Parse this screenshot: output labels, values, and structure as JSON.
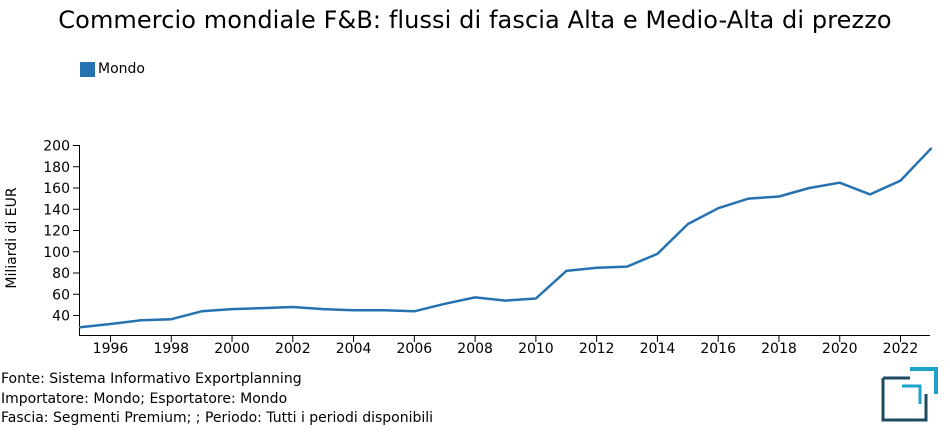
{
  "title": "Commercio mondiale F&B: flussi di fascia Alta e Medio-Alta di prezzo",
  "legend": {
    "label": "Mondo",
    "color": "#2672b0"
  },
  "chart_data": {
    "type": "line",
    "title": "Commercio mondiale F&B: flussi di fascia Alta e Medio-Alta di prezzo",
    "xlabel": "",
    "ylabel": "Miliardi di EUR",
    "xlim": [
      1995,
      2023
    ],
    "ylim": [
      27,
      205
    ],
    "x_ticks": [
      "1996",
      "1998",
      "2000",
      "2002",
      "2004",
      "2006",
      "2008",
      "2010",
      "2012",
      "2014",
      "2016",
      "2018",
      "2020",
      "2022"
    ],
    "y_ticks": [
      "40",
      "60",
      "80",
      "100",
      "120",
      "140",
      "160",
      "180",
      "200"
    ],
    "grid": false,
    "legend_position": "top-left",
    "series": [
      {
        "name": "Mondo",
        "color": "#2672b0",
        "x": [
          1995,
          1996,
          1997,
          1998,
          1999,
          2000,
          2001,
          2002,
          2003,
          2004,
          2005,
          2006,
          2007,
          2008,
          2009,
          2010,
          2011,
          2012,
          2013,
          2014,
          2015,
          2016,
          2017,
          2018,
          2019,
          2020,
          2021,
          2022,
          2023
        ],
        "values": [
          29,
          32,
          35.5,
          36.5,
          44,
          46,
          47,
          48,
          46,
          45,
          45,
          44,
          51,
          57,
          54,
          56,
          82,
          85,
          86,
          98,
          126,
          141,
          150,
          152,
          160,
          165,
          154,
          167,
          197
        ]
      }
    ]
  },
  "footnotes": {
    "source": "Fonte: Sistema Informativo Exportplanning",
    "importer": "Importatore: Mondo; Esportatore: Mondo",
    "band": "Fascia: Segmenti Premium; ; Periodo: Tutti i periodi disponibili"
  },
  "logo": {
    "frame_color": "#1d4a5e",
    "accent_color": "#1ca3c8"
  }
}
